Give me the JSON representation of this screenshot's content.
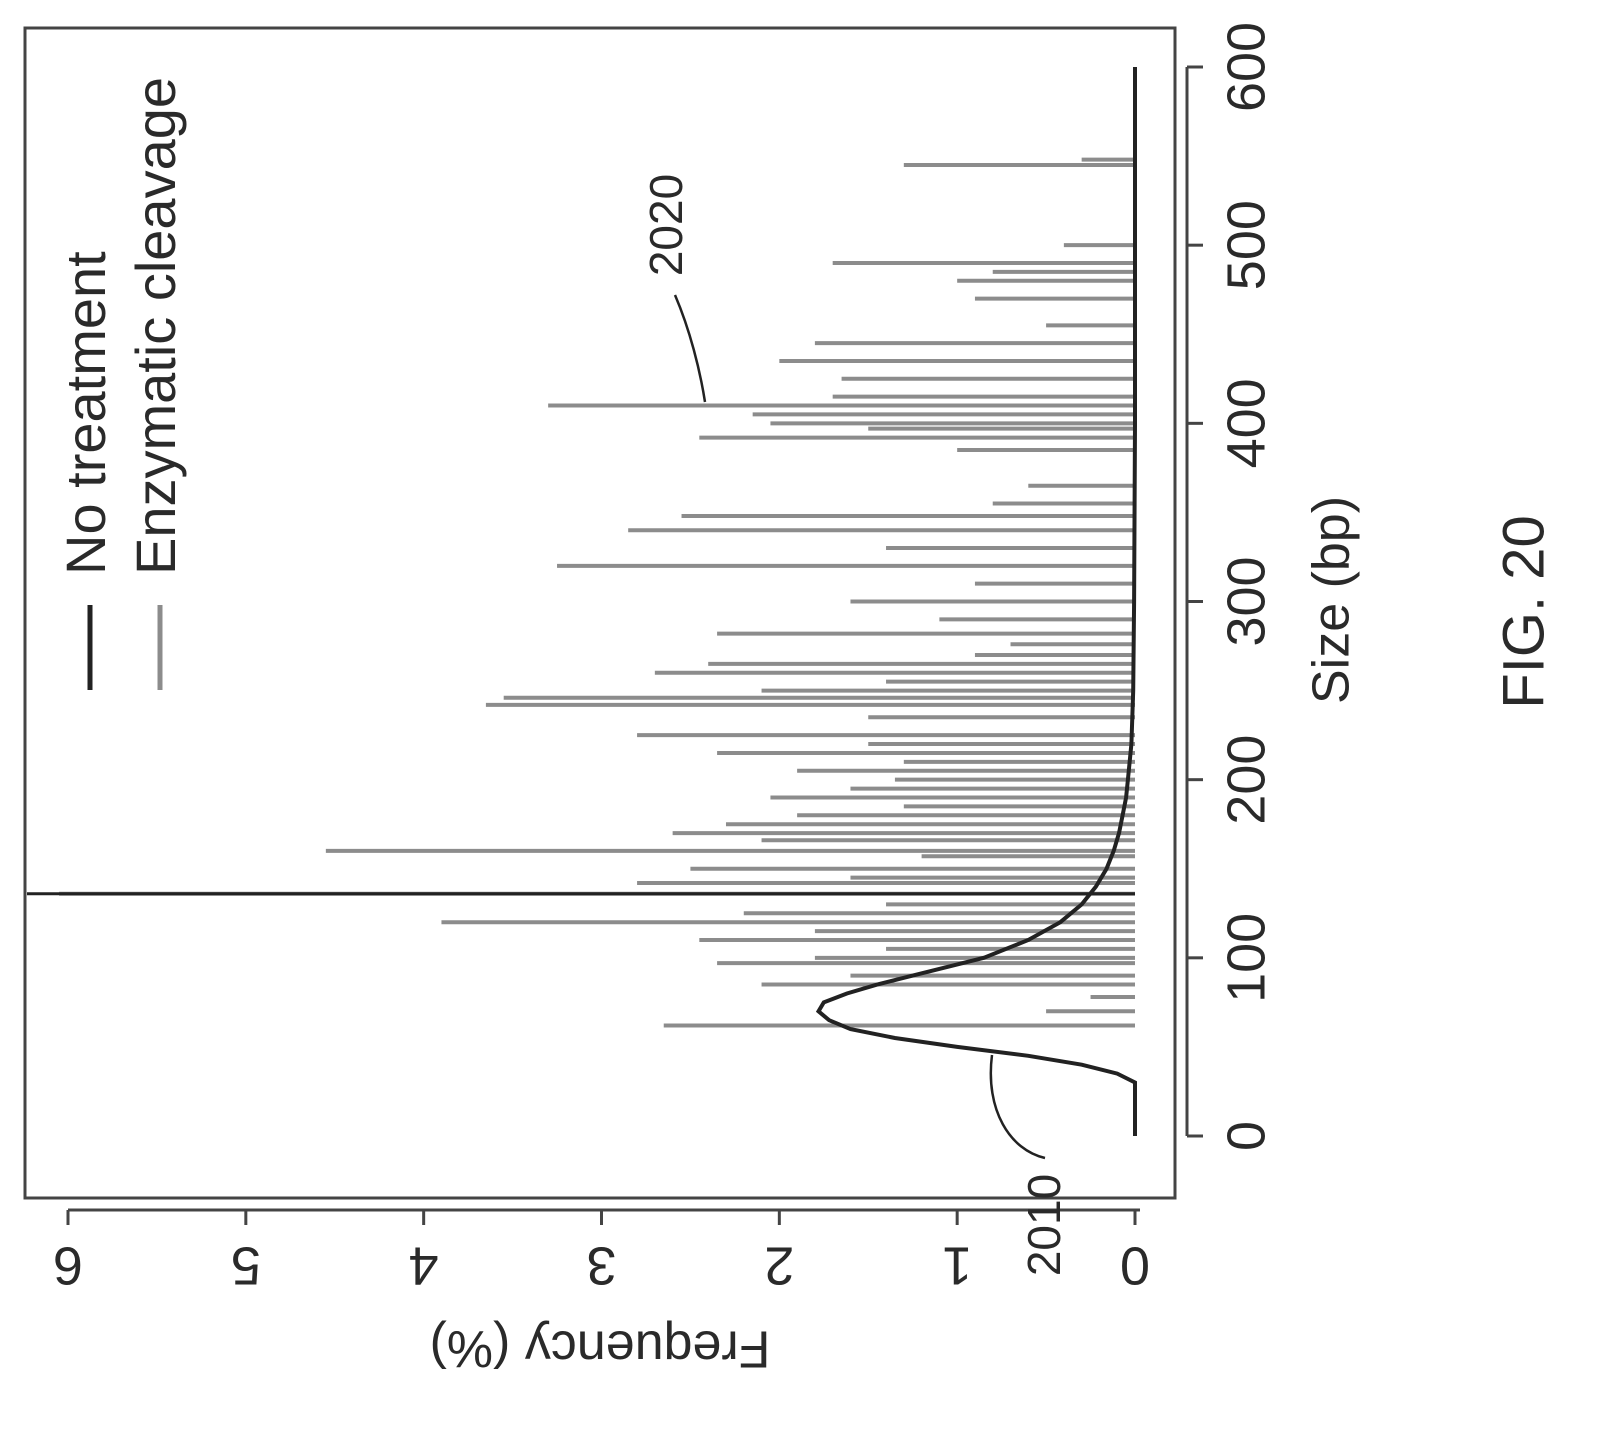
{
  "figure_label": "FIG. 20",
  "colors": {
    "no_treatment": "#222222",
    "enzymatic": "#8c8c8c",
    "frame": "#444444",
    "text": "#2a2a2a"
  },
  "callouts": [
    {
      "label": "2010"
    },
    {
      "label": "2020"
    }
  ],
  "chart_data": {
    "type": "line",
    "orientation": "rotated 90 degrees clockwise (size axis vertical)",
    "title": "",
    "xlabel": "Size (bp)",
    "ylabel": "Frequency (%)",
    "xlim": [
      -25,
      615
    ],
    "ylim": [
      -0.15,
      6.15
    ],
    "xticks": [
      "0",
      "100",
      "200",
      "300",
      "400",
      "500",
      "600"
    ],
    "yticks": [
      "0",
      "1",
      "2",
      "3",
      "4",
      "5",
      "6"
    ],
    "legend": {
      "placement": "top-left",
      "entries": [
        "No treatment",
        "Enzymatic cleavage"
      ]
    },
    "series": [
      {
        "name": "No treatment",
        "kind": "line",
        "x": [
          0,
          30,
          35,
          40,
          45,
          50,
          55,
          60,
          65,
          70,
          75,
          80,
          85,
          90,
          95,
          100,
          110,
          120,
          130,
          140,
          150,
          160,
          170,
          180,
          190,
          200,
          220,
          250,
          300,
          400,
          500,
          600
        ],
        "y": [
          0,
          0,
          0.1,
          0.3,
          0.6,
          1.0,
          1.35,
          1.6,
          1.72,
          1.78,
          1.75,
          1.62,
          1.45,
          1.25,
          1.05,
          0.85,
          0.6,
          0.42,
          0.3,
          0.22,
          0.16,
          0.12,
          0.09,
          0.07,
          0.05,
          0.04,
          0.02,
          0.01,
          0.005,
          0,
          0,
          0
        ]
      },
      {
        "name": "Enzymatic cleavage",
        "kind": "spikes",
        "x": [
          62,
          70,
          78,
          85,
          90,
          97,
          100,
          105,
          110,
          115,
          120,
          125,
          130,
          136,
          142,
          145,
          150,
          157,
          160,
          166,
          170,
          175,
          180,
          185,
          190,
          195,
          200,
          205,
          210,
          215,
          220,
          225,
          235,
          242,
          246,
          250,
          255,
          260,
          265,
          270,
          276,
          282,
          290,
          300,
          310,
          320,
          330,
          340,
          348,
          355,
          365,
          385,
          392,
          397,
          400,
          405,
          410,
          415,
          425,
          435,
          445,
          455,
          470,
          480,
          485,
          490,
          500,
          545,
          548
        ],
        "y": [
          2.65,
          0.5,
          0.25,
          2.1,
          1.6,
          2.35,
          1.8,
          1.4,
          2.45,
          1.8,
          3.9,
          2.2,
          1.4,
          6.05,
          2.8,
          1.6,
          2.5,
          1.2,
          4.55,
          2.1,
          2.6,
          2.3,
          1.9,
          1.3,
          2.05,
          1.6,
          1.35,
          1.9,
          1.3,
          2.35,
          1.5,
          2.8,
          1.5,
          3.65,
          3.55,
          2.1,
          1.4,
          2.7,
          2.4,
          0.9,
          0.7,
          2.35,
          1.1,
          1.6,
          0.9,
          3.25,
          1.4,
          2.85,
          2.55,
          0.8,
          0.6,
          1.0,
          2.45,
          1.5,
          2.05,
          2.15,
          3.3,
          1.7,
          1.65,
          2.0,
          1.8,
          0.5,
          0.9,
          1.0,
          0.8,
          1.7,
          0.4,
          1.3,
          0.3
        ]
      }
    ]
  }
}
